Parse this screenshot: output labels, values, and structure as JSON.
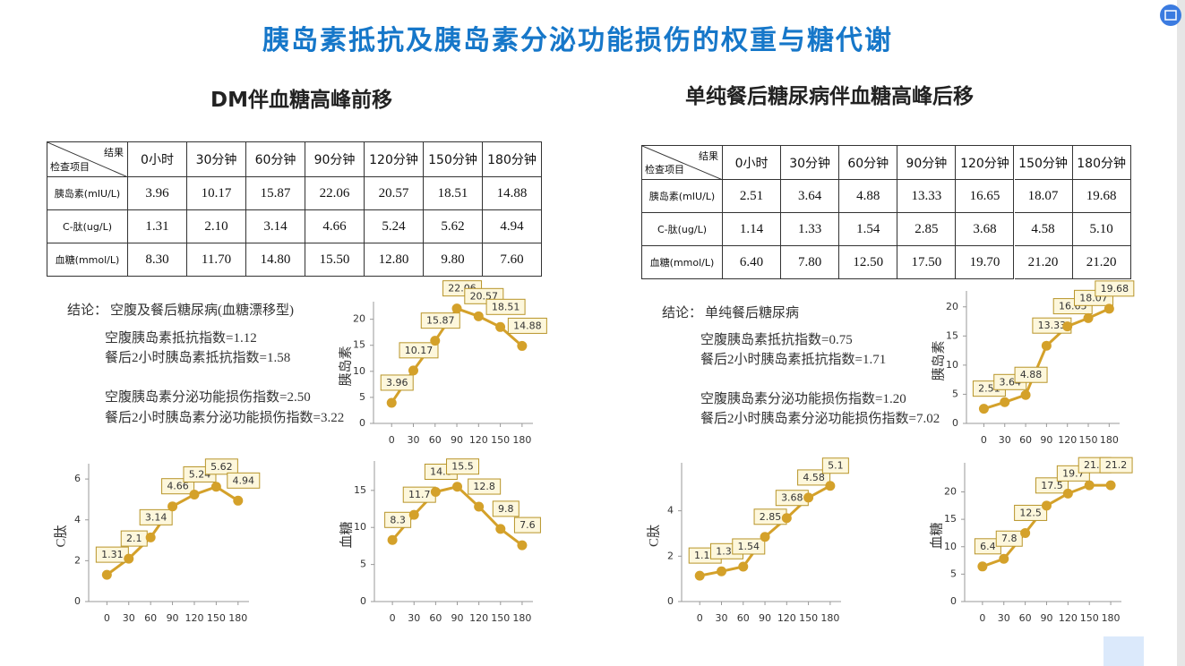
{
  "title": "胰岛素抵抗及胰岛素分泌功能损伤的权重与糖代谢",
  "panels": [
    {
      "heading": "DM伴血糖高峰前移",
      "table": {
        "corner_top": "结果",
        "corner_bottom": "检查项目",
        "columns": [
          "0小时",
          "30分钟",
          "60分钟",
          "90分钟",
          "120分钟",
          "150分钟",
          "180分钟"
        ],
        "rows": [
          {
            "label": "胰岛素(mIU/L)",
            "cells": [
              "3.96",
              "10.17",
              "15.87",
              "22.06",
              "20.57",
              "18.51",
              "14.88"
            ]
          },
          {
            "label": "C-肽(ug/L)",
            "cells": [
              "1.31",
              "2.10",
              "3.14",
              "4.66",
              "5.24",
              "5.62",
              "4.94"
            ]
          },
          {
            "label": "血糖(mmol/L)",
            "cells": [
              "8.30",
              "11.70",
              "14.80",
              "15.50",
              "12.80",
              "9.80",
              "7.60"
            ]
          }
        ]
      },
      "conclusion": {
        "label": "结论：",
        "text": "空腹及餐后糖尿病(血糖漂移型)",
        "lines": [
          "空腹胰岛素抵抗指数=1.12",
          "餐后2小时胰岛素抵抗指数=1.58",
          "空腹胰岛素分泌功能损伤指数=2.50",
          "餐后2小时胰岛素分泌功能损伤指数=3.22"
        ]
      }
    },
    {
      "heading": "单纯餐后糖尿病伴血糖高峰后移",
      "table": {
        "corner_top": "结果",
        "corner_bottom": "检查项目",
        "columns": [
          "0小时",
          "30分钟",
          "60分钟",
          "90分钟",
          "120分钟",
          "150分钟",
          "180分钟"
        ],
        "rows": [
          {
            "label": "胰岛素(mIU/L)",
            "cells": [
              "2.51",
              "3.64",
              "4.88",
              "13.33",
              "16.65",
              "18.07",
              "19.68"
            ]
          },
          {
            "label": "C-肽(ug/L)",
            "cells": [
              "1.14",
              "1.33",
              "1.54",
              "2.85",
              "3.68",
              "4.58",
              "5.10"
            ]
          },
          {
            "label": "血糖(mmol/L)",
            "cells": [
              "6.40",
              "7.80",
              "12.50",
              "17.50",
              "19.70",
              "21.20",
              "21.20"
            ]
          }
        ]
      },
      "conclusion": {
        "label": "结论：",
        "text": "单纯餐后糖尿病",
        "lines": [
          "空腹胰岛素抵抗指数=0.75",
          "餐后2小时胰岛素抵抗指数=1.71",
          "空腹胰岛素分泌功能损伤指数=1.20",
          "餐后2小时胰岛素分泌功能损伤指数=7.02"
        ]
      }
    }
  ],
  "chart_data": [
    {
      "type": "line",
      "ylabel": "胰岛素",
      "color": "#d4a12a",
      "x": [
        0,
        30,
        60,
        90,
        120,
        150,
        180
      ],
      "xlim": [
        -25,
        195
      ],
      "xticks": [
        0,
        30,
        60,
        90,
        120,
        150,
        180
      ],
      "ylim": [
        0,
        22
      ],
      "yticks": [
        0,
        5,
        10,
        15,
        20
      ],
      "values": [
        3.96,
        10.17,
        15.87,
        22.06,
        20.57,
        18.51,
        14.88
      ]
    },
    {
      "type": "line",
      "ylabel": "C肽",
      "color": "#d4a12a",
      "x": [
        0,
        30,
        60,
        90,
        120,
        150,
        180
      ],
      "xlim": [
        -25,
        195
      ],
      "xticks": [
        0,
        30,
        60,
        90,
        120,
        150,
        180
      ],
      "ylim": [
        0,
        6.4
      ],
      "yticks": [
        0,
        2,
        4,
        6
      ],
      "values": [
        1.31,
        2.1,
        3.14,
        4.66,
        5.24,
        5.62,
        4.94
      ]
    },
    {
      "type": "line",
      "ylabel": "血糖",
      "color": "#d4a12a",
      "x": [
        0,
        30,
        60,
        90,
        120,
        150,
        180
      ],
      "xlim": [
        -25,
        195
      ],
      "xticks": [
        0,
        30,
        60,
        90,
        120,
        150,
        180
      ],
      "ylim": [
        0,
        18
      ],
      "yticks": [
        0,
        5,
        10,
        15
      ],
      "values": [
        8.3,
        11.7,
        14.8,
        15.5,
        12.8,
        9.8,
        7.6
      ]
    },
    {
      "type": "line",
      "ylabel": "胰岛素",
      "color": "#d4a12a",
      "x": [
        0,
        30,
        60,
        90,
        120,
        150,
        180
      ],
      "xlim": [
        -25,
        195
      ],
      "xticks": [
        0,
        30,
        60,
        90,
        120,
        150,
        180
      ],
      "ylim": [
        0,
        21.5
      ],
      "yticks": [
        0,
        5,
        10,
        15,
        20
      ],
      "values": [
        2.51,
        3.64,
        4.88,
        13.33,
        16.65,
        18.07,
        19.68
      ]
    },
    {
      "type": "line",
      "ylabel": "C肽",
      "color": "#d4a12a",
      "x": [
        0,
        30,
        60,
        90,
        120,
        150,
        180
      ],
      "xlim": [
        -25,
        195
      ],
      "xticks": [
        0,
        30,
        60,
        90,
        120,
        150,
        180
      ],
      "ylim": [
        0,
        5.8
      ],
      "yticks": [
        0,
        2,
        4
      ],
      "values": [
        1.14,
        1.33,
        1.54,
        2.85,
        3.68,
        4.58,
        5.1
      ]
    },
    {
      "type": "line",
      "ylabel": "血糖",
      "color": "#d4a12a",
      "x": [
        0,
        30,
        60,
        90,
        120,
        150,
        180
      ],
      "xlim": [
        -25,
        195
      ],
      "xticks": [
        0,
        30,
        60,
        90,
        120,
        150,
        180
      ],
      "ylim": [
        0,
        24
      ],
      "yticks": [
        0,
        5,
        10,
        15,
        20
      ],
      "values": [
        6.4,
        7.8,
        12.5,
        17.5,
        19.7,
        21.2,
        21.2
      ]
    }
  ]
}
